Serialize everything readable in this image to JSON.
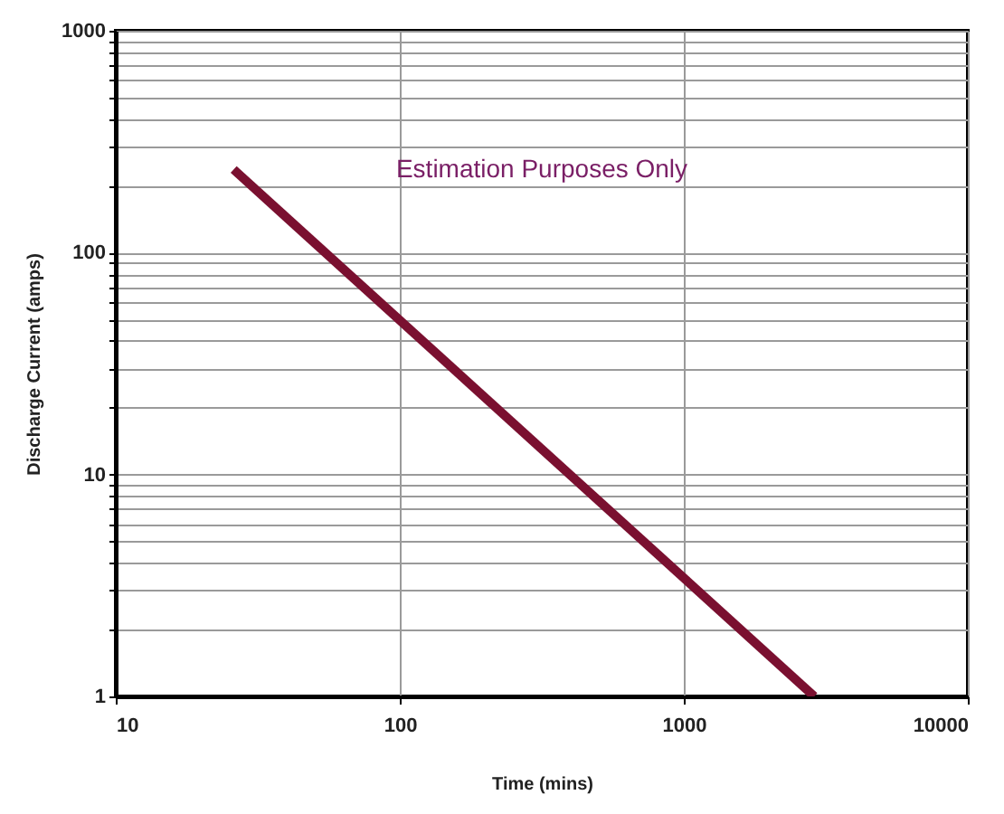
{
  "chart_data": {
    "type": "line",
    "xlabel": "Time (mins)",
    "ylabel": "Discharge Current (amps)",
    "annotations": [
      "Estimation Purposes Only"
    ],
    "log": "xy",
    "grid": true,
    "marker": "none",
    "line_style": "solid",
    "xlim": [
      10,
      10000
    ],
    "xticks": [
      10,
      100,
      1000,
      10000
    ],
    "ylim": [
      1,
      1000
    ],
    "yticks": [
      1,
      {
        "value": 2,
        "label": null
      },
      {
        "value": 3,
        "label": null
      },
      {
        "value": 4,
        "label": null
      },
      {
        "value": 5,
        "label": null
      },
      {
        "value": 6,
        "label": null
      },
      {
        "value": 7,
        "label": null
      },
      {
        "value": 8,
        "label": null
      },
      {
        "value": 9,
        "label": null
      },
      10,
      {
        "value": 20,
        "label": null
      },
      {
        "value": 30,
        "label": null
      },
      {
        "value": 40,
        "label": null
      },
      {
        "value": 50,
        "label": null
      },
      {
        "value": 60,
        "label": null
      },
      {
        "value": 70,
        "label": null
      },
      {
        "value": 80,
        "label": null
      },
      {
        "value": 90,
        "label": null
      },
      100,
      {
        "value": 200,
        "label": null
      },
      {
        "value": 300,
        "label": null
      },
      {
        "value": 400,
        "label": null
      },
      {
        "value": 500,
        "label": null
      },
      {
        "value": 600,
        "label": null
      },
      {
        "value": 700,
        "label": null
      },
      {
        "value": 800,
        "label": null
      },
      {
        "value": 900,
        "label": null
      },
      1000
    ],
    "series": [
      {
        "color": "#7a1030",
        "x": [
          26,
          2880
        ],
        "values": [
          237,
          1
        ]
      }
    ]
  }
}
